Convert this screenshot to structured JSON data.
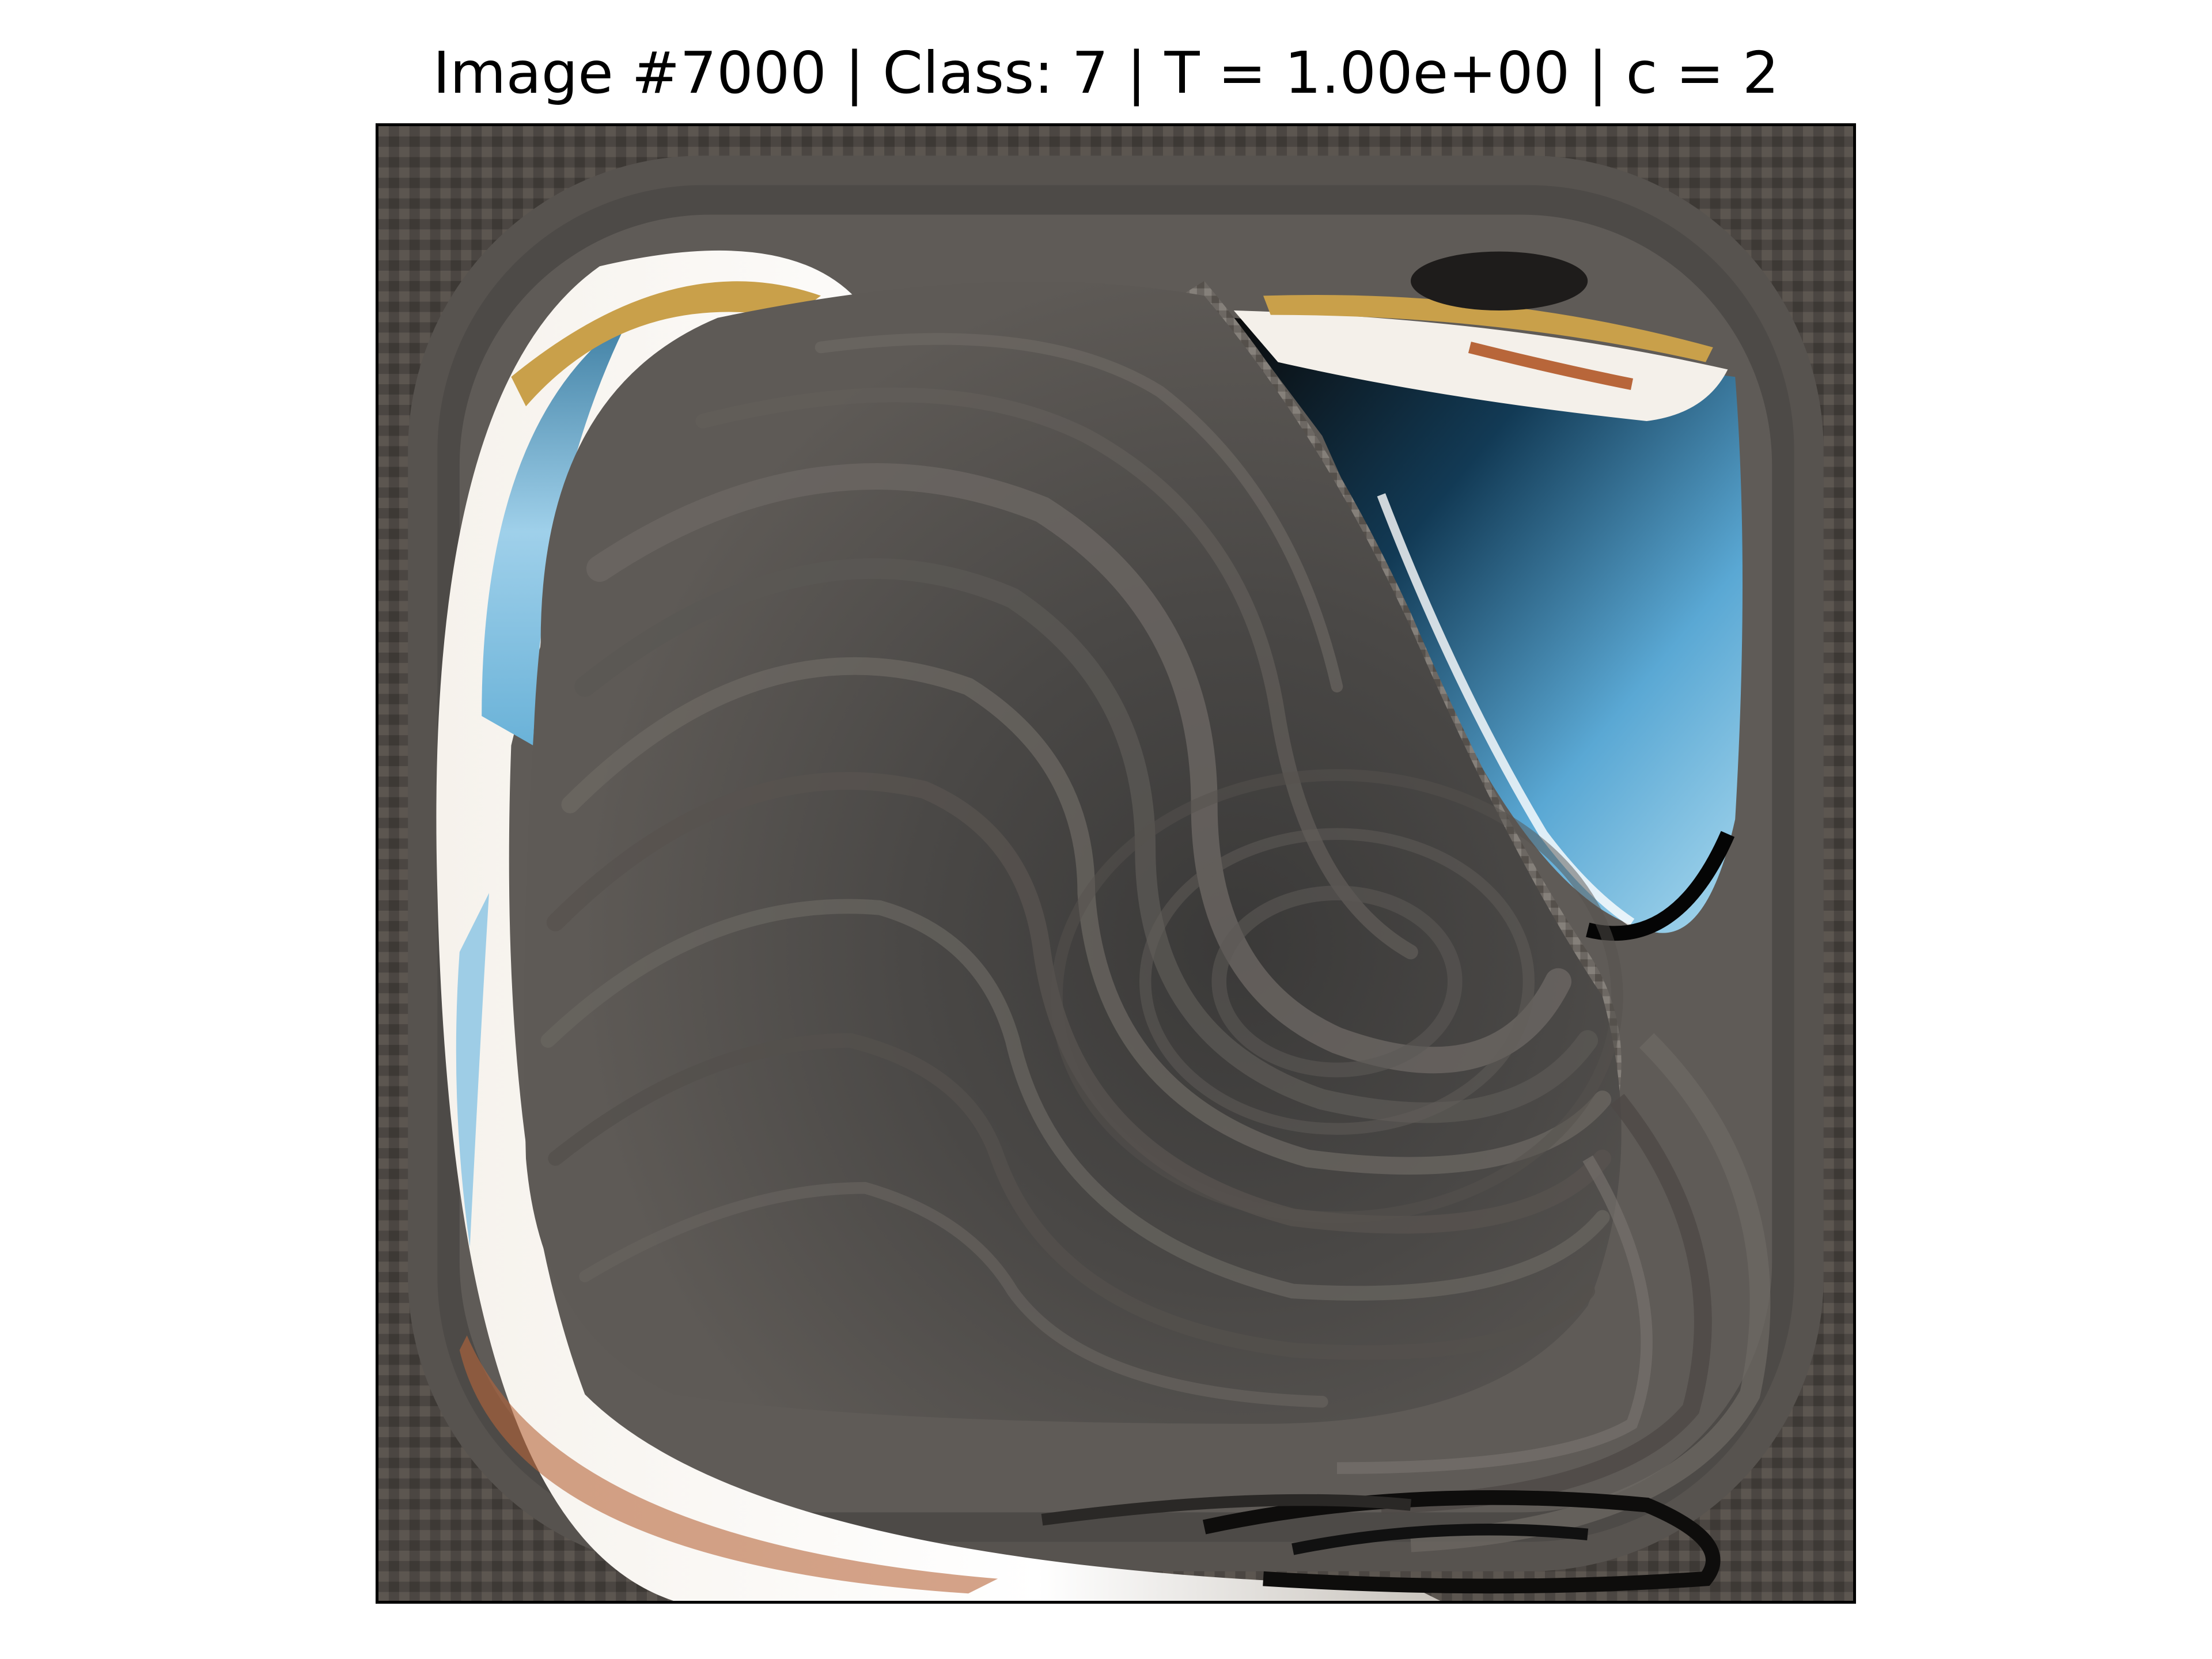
{
  "figure": {
    "title": "Image #7000 | Class: 7 | T = 1.00e+00 | c = 2"
  },
  "image": {
    "description_icon": "swirl-distorted-photo",
    "colors": {
      "background": "#ffffff",
      "swirl_dark": "#3c3b3a",
      "swirl_mid": "#5a5856",
      "swirl_light": "#77736f",
      "sky_blue": "#7ec3e6",
      "deep_blue": "#1f5f85",
      "highlight": "#f4f0ea",
      "gold": "#c9a04a",
      "rust": "#b8663a",
      "shadow": "#050505"
    }
  }
}
